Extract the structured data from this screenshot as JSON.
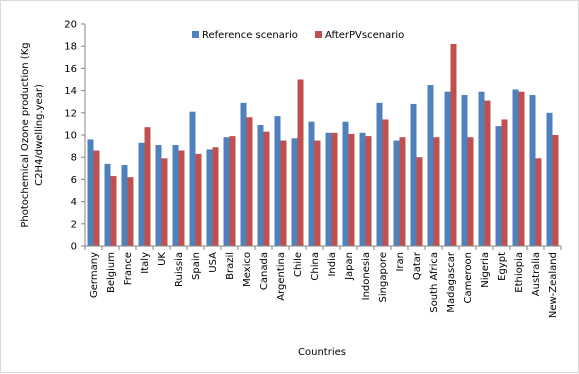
{
  "chart_data": {
    "type": "bar",
    "xlabel": "Countries",
    "ylabel": "Photochemical Ozone production (Kg C2H4/dwelling.year)",
    "ylabel_lines": [
      "Photochemical Ozone production (Kg",
      "C2H4/dwelling.year)"
    ],
    "ylim": [
      0,
      20
    ],
    "yticks": [
      "0",
      "2",
      "4",
      "6",
      "8",
      "10",
      "12",
      "14",
      "16",
      "18",
      "20"
    ],
    "grid": false,
    "legend_position": "top",
    "categories": [
      "Germany",
      "Belgium",
      "France",
      "Italy",
      "UK",
      "Ruissia",
      "Spain",
      "USA",
      "Brazil",
      "Mexico",
      "Canada",
      "Argentina",
      "Chile",
      "China",
      "India",
      "Japan",
      "Indonesia",
      "Singapore",
      "Iran",
      "Qatar",
      "South Africa",
      "Madagascar",
      "Cameroon",
      "Nigeria",
      "Egypt",
      "Ethiopia",
      "Australia",
      "New-Zealand"
    ],
    "series": [
      {
        "name": "Reference scenario",
        "color": "#4f81bd",
        "values": [
          9.6,
          7.4,
          7.3,
          9.3,
          9.1,
          9.1,
          12.1,
          8.7,
          9.8,
          12.9,
          10.9,
          11.7,
          9.7,
          11.2,
          10.2,
          11.2,
          10.2,
          12.9,
          9.5,
          12.8,
          14.5,
          13.9,
          13.6,
          13.9,
          10.8,
          14.1,
          13.6,
          12.0
        ]
      },
      {
        "name": "AfterPVscenario",
        "color": "#c0504d",
        "values": [
          8.6,
          6.3,
          6.2,
          10.7,
          7.9,
          8.6,
          8.3,
          8.9,
          9.9,
          11.6,
          10.3,
          9.5,
          15.0,
          9.5,
          10.2,
          10.1,
          9.9,
          11.4,
          9.8,
          8.0,
          9.8,
          18.2,
          9.8,
          13.1,
          11.4,
          13.9,
          7.9,
          10.0
        ]
      }
    ]
  }
}
